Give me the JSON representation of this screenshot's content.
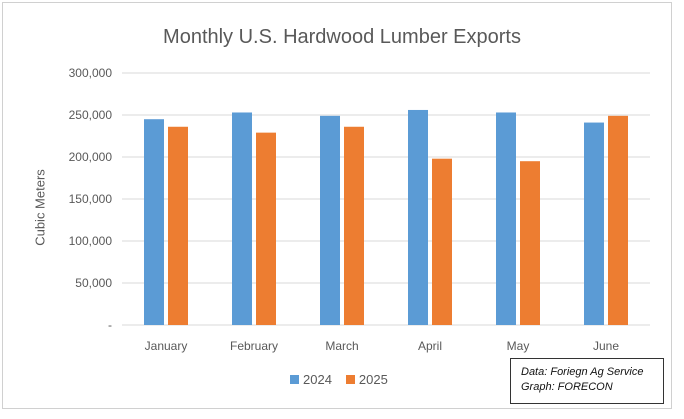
{
  "chart_data": {
    "type": "bar",
    "title": "Monthly U.S. Hardwood Lumber Exports",
    "xlabel": "",
    "ylabel": "Cubic Meters",
    "ylim": [
      0,
      300000
    ],
    "yticks": [
      0,
      50000,
      100000,
      150000,
      200000,
      250000,
      300000
    ],
    "ytick_labels": [
      "-",
      "50,000",
      "100,000",
      "150,000",
      "200,000",
      "250,000",
      "300,000"
    ],
    "categories": [
      "January",
      "February",
      "March",
      "April",
      "May",
      "June"
    ],
    "series": [
      {
        "name": "2024",
        "color": "#5B9BD5",
        "values": [
          245000,
          253000,
          249000,
          256000,
          253000,
          241000
        ]
      },
      {
        "name": "2025",
        "color": "#ED7D31",
        "values": [
          236000,
          229000,
          236000,
          198000,
          195000,
          249000
        ]
      }
    ],
    "grid": true,
    "legend_position": "bottom"
  },
  "source": {
    "line1": "Data: Foriegn Ag Service",
    "line2": "Graph: FORECON"
  }
}
